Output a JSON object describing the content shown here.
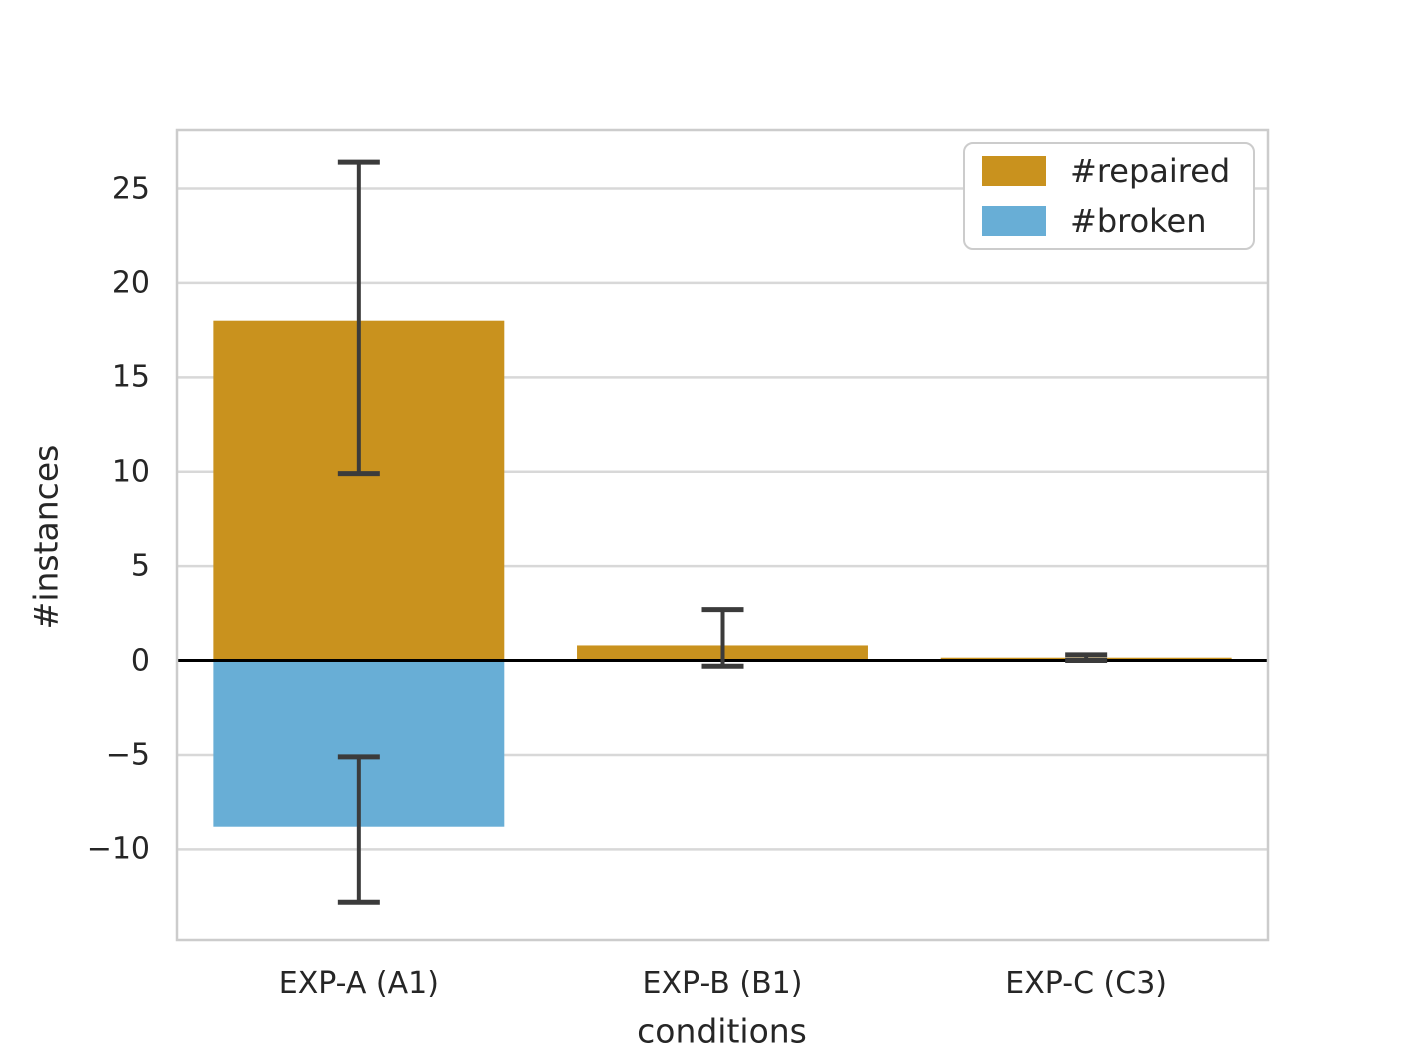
{
  "figure": {
    "background": "#ffffff",
    "text_color": "#262626",
    "spine_color": "#cccccc",
    "grid_color": "#d8d8d8",
    "zero_line_color": "#000000"
  },
  "legend": {
    "items": [
      {
        "label": "#repaired",
        "color": "#c9921e"
      },
      {
        "label": "#broken",
        "color": "#68aed6"
      }
    ]
  },
  "chart_data": {
    "type": "bar",
    "title": "",
    "xlabel": "conditions",
    "ylabel": "#instances",
    "categories": [
      "EXP-A (A1)",
      "EXP-B (B1)",
      "EXP-C (C3)"
    ],
    "series": [
      {
        "name": "#repaired",
        "color": "#c9921e",
        "values": [
          18.0,
          0.8,
          0.15
        ],
        "err_low": [
          9.9,
          -0.3,
          0.0
        ],
        "err_high": [
          26.4,
          2.7,
          0.3
        ]
      },
      {
        "name": "#broken",
        "color": "#68aed6",
        "values": [
          -8.8,
          0.0,
          0.0
        ],
        "err_low": [
          -12.8,
          null,
          null
        ],
        "err_high": [
          -5.1,
          null,
          null
        ]
      }
    ],
    "ylim": [
      -14.8,
      28.1
    ],
    "yticks": [
      25,
      20,
      15,
      10,
      5,
      0,
      -5,
      -10
    ],
    "ytick_labels": [
      "25",
      "20",
      "15",
      "10",
      "5",
      "0",
      "−5",
      "−10"
    ],
    "grid": true,
    "zero_line": true,
    "legend_position": "upper right",
    "error_bar_color": "#3b3b3b"
  }
}
